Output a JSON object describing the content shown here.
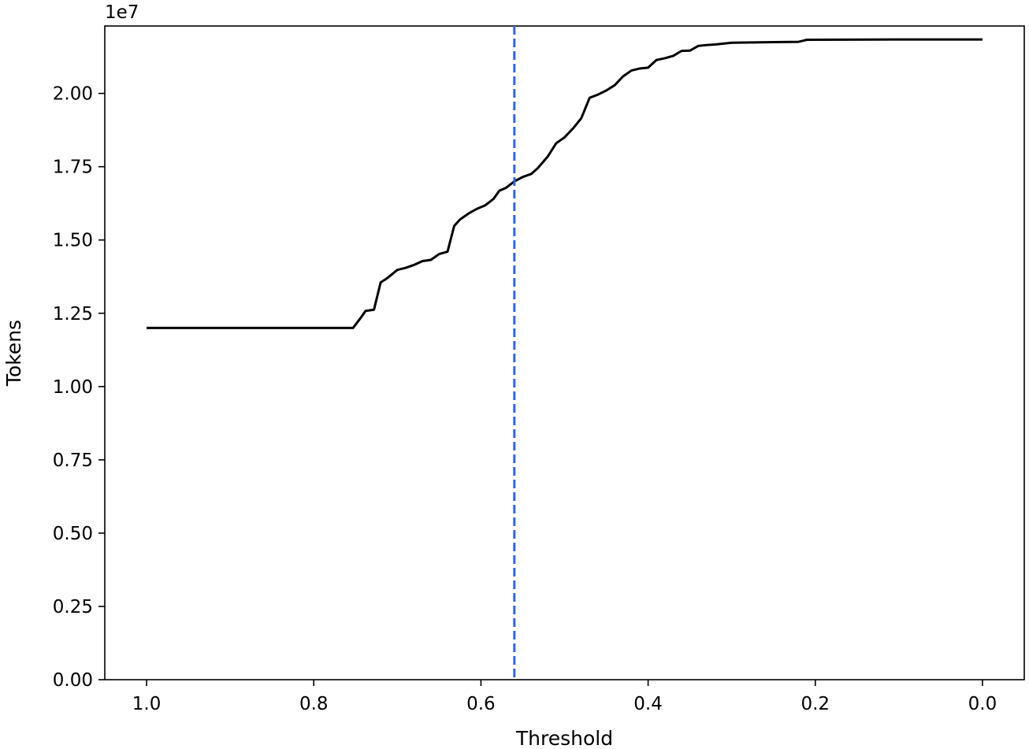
{
  "chart_data": {
    "type": "line",
    "xlabel": "Threshold",
    "ylabel": "Tokens",
    "y_offset_label": "1e7",
    "x_axis_inverted": true,
    "xlim": [
      1.05,
      -0.05
    ],
    "ylim": [
      0,
      22300000
    ],
    "x_ticks": [
      1.0,
      0.8,
      0.6,
      0.4,
      0.2,
      0.0
    ],
    "x_tick_labels": [
      "1.0",
      "0.8",
      "0.6",
      "0.4",
      "0.2",
      "0.0"
    ],
    "y_ticks": [
      0,
      2500000,
      5000000,
      7500000,
      10000000,
      12500000,
      15000000,
      17500000,
      20000000
    ],
    "y_tick_labels": [
      "0.00",
      "0.25",
      "0.50",
      "0.75",
      "1.00",
      "1.25",
      "1.50",
      "1.75",
      "2.00"
    ],
    "grid": false,
    "series": [
      {
        "color": "#000000",
        "style": "solid",
        "points": [
          [
            1.0,
            12000000
          ],
          [
            0.9,
            12000000
          ],
          [
            0.8,
            12000000
          ],
          [
            0.753,
            12000000
          ],
          [
            0.745,
            12300000
          ],
          [
            0.738,
            12580000
          ],
          [
            0.728,
            12620000
          ],
          [
            0.72,
            13550000
          ],
          [
            0.712,
            13700000
          ],
          [
            0.7,
            13980000
          ],
          [
            0.69,
            14050000
          ],
          [
            0.68,
            14150000
          ],
          [
            0.67,
            14280000
          ],
          [
            0.66,
            14320000
          ],
          [
            0.65,
            14520000
          ],
          [
            0.64,
            14600000
          ],
          [
            0.632,
            15480000
          ],
          [
            0.625,
            15700000
          ],
          [
            0.615,
            15900000
          ],
          [
            0.605,
            16060000
          ],
          [
            0.595,
            16180000
          ],
          [
            0.585,
            16400000
          ],
          [
            0.578,
            16680000
          ],
          [
            0.57,
            16780000
          ],
          [
            0.56,
            17000000
          ],
          [
            0.55,
            17150000
          ],
          [
            0.54,
            17250000
          ],
          [
            0.532,
            17450000
          ],
          [
            0.52,
            17850000
          ],
          [
            0.51,
            18300000
          ],
          [
            0.5,
            18500000
          ],
          [
            0.49,
            18800000
          ],
          [
            0.48,
            19150000
          ],
          [
            0.47,
            19850000
          ],
          [
            0.46,
            19960000
          ],
          [
            0.45,
            20100000
          ],
          [
            0.44,
            20280000
          ],
          [
            0.43,
            20580000
          ],
          [
            0.42,
            20780000
          ],
          [
            0.41,
            20850000
          ],
          [
            0.4,
            20880000
          ],
          [
            0.39,
            21140000
          ],
          [
            0.38,
            21200000
          ],
          [
            0.37,
            21280000
          ],
          [
            0.36,
            21450000
          ],
          [
            0.35,
            21460000
          ],
          [
            0.34,
            21620000
          ],
          [
            0.33,
            21650000
          ],
          [
            0.32,
            21670000
          ],
          [
            0.3,
            21730000
          ],
          [
            0.25,
            21750000
          ],
          [
            0.22,
            21760000
          ],
          [
            0.21,
            21830000
          ],
          [
            0.1,
            21840000
          ],
          [
            0.0,
            21840000
          ]
        ]
      }
    ],
    "vlines": [
      {
        "x": 0.56,
        "color": "#3366dd",
        "style": "dashed"
      }
    ]
  }
}
